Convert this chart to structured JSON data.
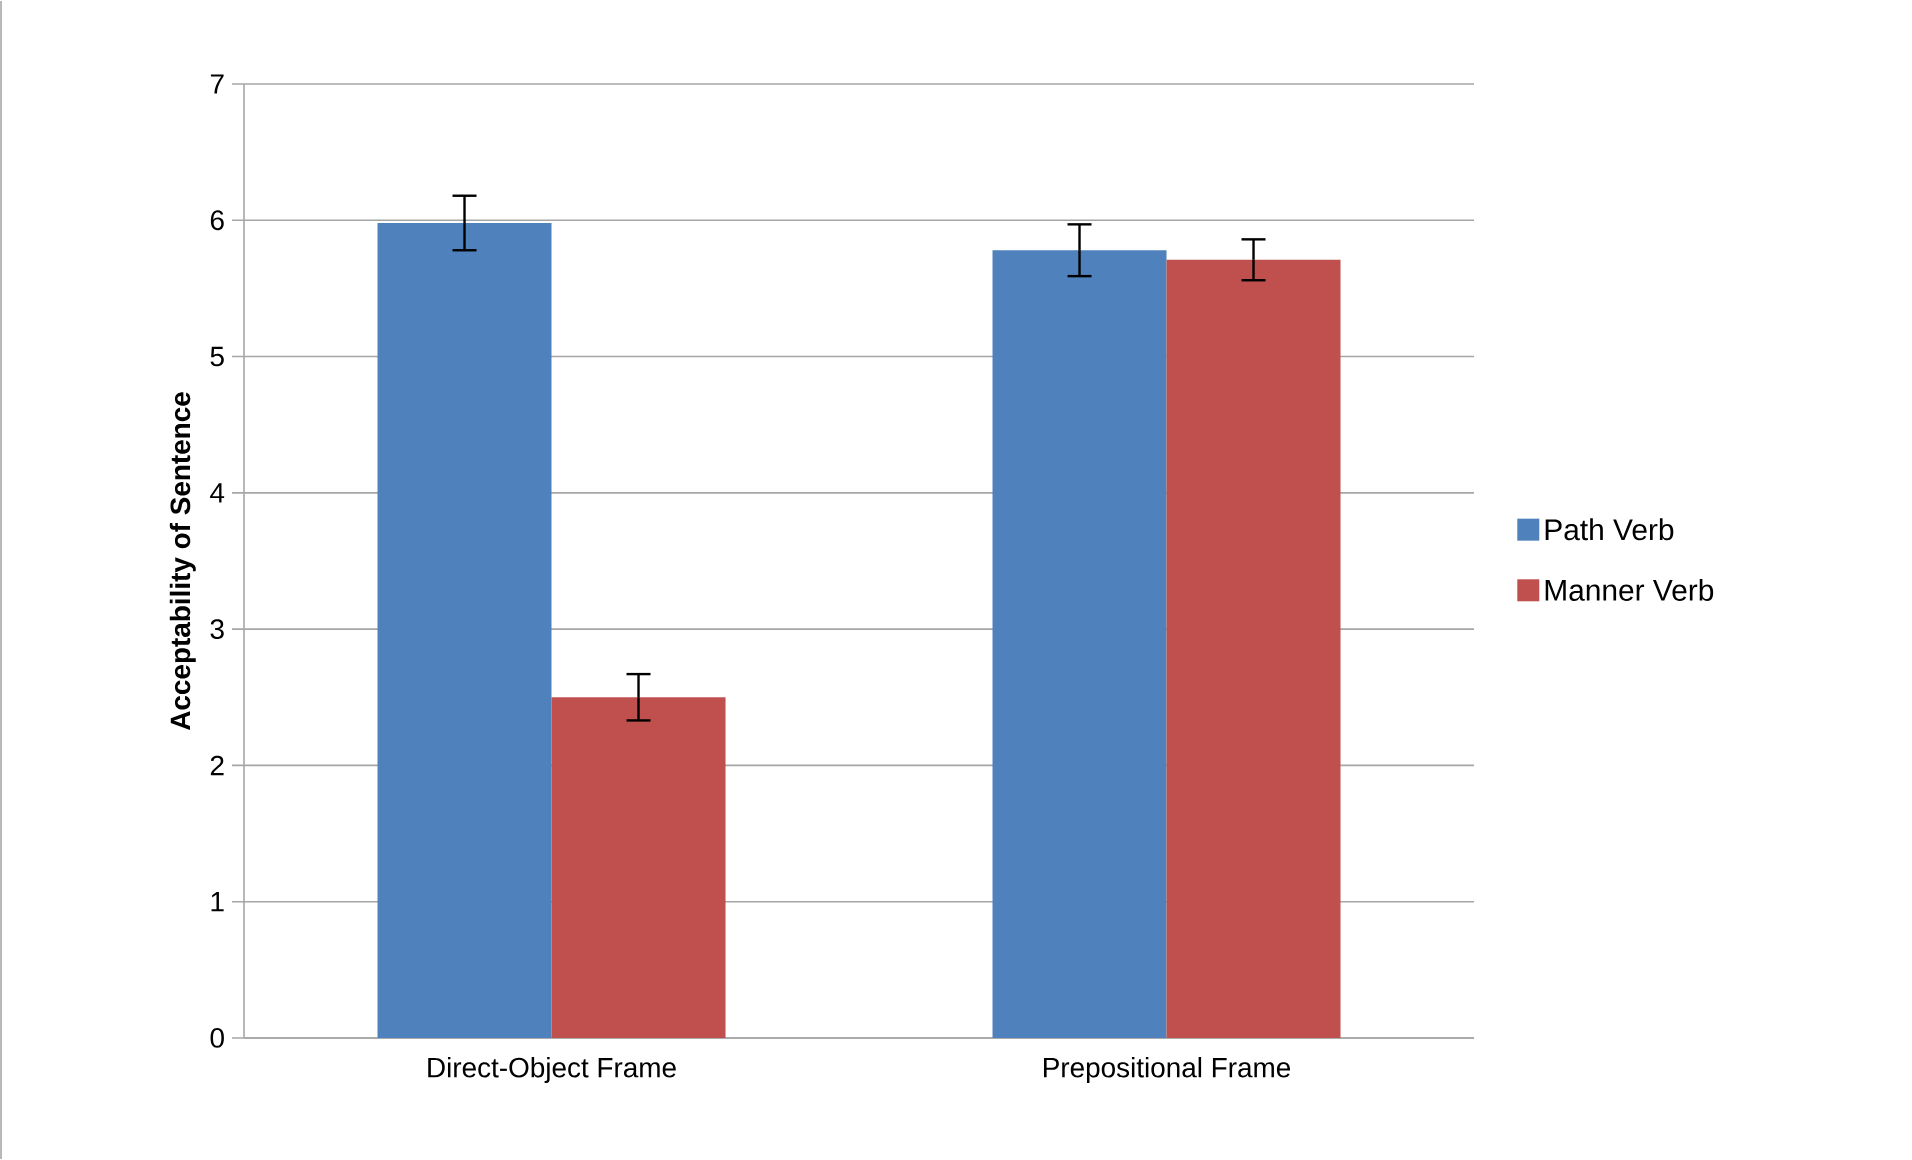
{
  "chart_data": {
    "type": "bar",
    "ylabel": "Acceptability of Sentence",
    "categories": [
      "Direct-Object Frame",
      "Prepositional Frame"
    ],
    "series": [
      {
        "name": "Path Verb",
        "color": "#4f81bd",
        "values": [
          5.98,
          5.78
        ],
        "errors": [
          0.2,
          0.19
        ]
      },
      {
        "name": "Manner Verb",
        "color": "#c0504d",
        "values": [
          2.5,
          5.71
        ],
        "errors": [
          0.17,
          0.15
        ]
      }
    ],
    "ylim": [
      0,
      7
    ],
    "yticks": [
      0,
      1,
      2,
      3,
      4,
      5,
      6,
      7
    ],
    "grid": "y",
    "legend": "right"
  }
}
